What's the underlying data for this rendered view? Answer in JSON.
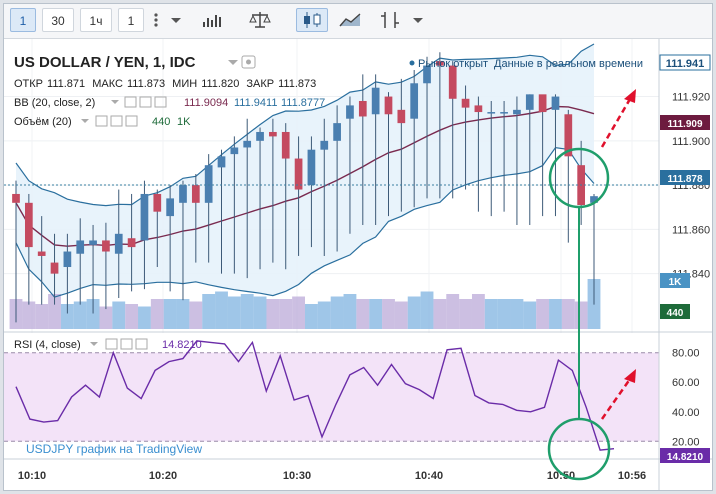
{
  "toolbar": {
    "buttons": [
      "1",
      "30",
      "1ч",
      "1"
    ],
    "active_index": 0
  },
  "header": {
    "title": "US DOLLAR / YEN, 1, IDC",
    "market_status": "Рынок открыт",
    "realtime": "Данные в реальном времени",
    "ohlc": {
      "open_label": "ОТКР",
      "open": "111.871",
      "high_label": "МАКС",
      "high": "111.873",
      "low_label": "МИН",
      "low": "111.820",
      "close_label": "ЗАКР",
      "close": "111.873"
    },
    "bb_label": "BB (20, close, 2)",
    "bb_values": [
      "111.9094",
      "111.9411",
      "111.8777"
    ],
    "volume_label": "Объём (20)",
    "volume_values": [
      "440",
      "1K"
    ]
  },
  "rsi_panel": {
    "label": "RSI (4, close)",
    "value": "14.8210"
  },
  "watermark": "USDJPY график на TradingView",
  "price_tags": {
    "top": "111.941",
    "mid": "111.909",
    "last": "111.878",
    "vol_1k": "1K",
    "vol_440": "440",
    "rsi": "14.8210"
  },
  "colors": {
    "up": "#4a7fb0",
    "down": "#c44a60",
    "bb_band": "#2a6f9e",
    "bb_mid": "#7a2a4f",
    "bb_fill": "#e6f2fb",
    "vol_up": "#7fb3e0",
    "vol_down": "#bba9d8",
    "rsi_line": "#6a2ca8",
    "rsi_fill": "#f3e3f8",
    "annotation": "#1f9e6b",
    "arrow": "#e0102c"
  },
  "chart_data": [
    {
      "type": "candlestick",
      "title": "US DOLLAR / YEN, 1, IDC",
      "x_ticks": [
        "10:10",
        "10:20",
        "10:30",
        "10:40",
        "10:50",
        "10:56"
      ],
      "y_ticks": [
        111.84,
        111.86,
        111.88,
        111.9,
        111.92
      ],
      "ylim": [
        111.815,
        111.946
      ],
      "candles": [
        {
          "o": 111.876,
          "h": 111.882,
          "l": 111.818,
          "c": 111.872
        },
        {
          "o": 111.872,
          "h": 111.876,
          "l": 111.826,
          "c": 111.852
        },
        {
          "o": 111.85,
          "h": 111.866,
          "l": 111.826,
          "c": 111.848
        },
        {
          "o": 111.845,
          "h": 111.858,
          "l": 111.826,
          "c": 111.84
        },
        {
          "o": 111.843,
          "h": 111.858,
          "l": 111.822,
          "c": 111.85
        },
        {
          "o": 111.849,
          "h": 111.865,
          "l": 111.826,
          "c": 111.855
        },
        {
          "o": 111.853,
          "h": 111.862,
          "l": 111.822,
          "c": 111.855
        },
        {
          "o": 111.855,
          "h": 111.863,
          "l": 111.824,
          "c": 111.85
        },
        {
          "o": 111.849,
          "h": 111.878,
          "l": 111.829,
          "c": 111.858
        },
        {
          "o": 111.856,
          "h": 111.876,
          "l": 111.832,
          "c": 111.852
        },
        {
          "o": 111.855,
          "h": 111.882,
          "l": 111.833,
          "c": 111.876
        },
        {
          "o": 111.876,
          "h": 111.878,
          "l": 111.843,
          "c": 111.868
        },
        {
          "o": 111.866,
          "h": 111.88,
          "l": 111.832,
          "c": 111.874
        },
        {
          "o": 111.872,
          "h": 111.882,
          "l": 111.828,
          "c": 111.88
        },
        {
          "o": 111.88,
          "h": 111.885,
          "l": 111.845,
          "c": 111.872
        },
        {
          "o": 111.872,
          "h": 111.894,
          "l": 111.845,
          "c": 111.889
        },
        {
          "o": 111.888,
          "h": 111.896,
          "l": 111.84,
          "c": 111.893
        },
        {
          "o": 111.894,
          "h": 111.902,
          "l": 111.84,
          "c": 111.897
        },
        {
          "o": 111.897,
          "h": 111.91,
          "l": 111.838,
          "c": 111.9
        },
        {
          "o": 111.9,
          "h": 111.906,
          "l": 111.842,
          "c": 111.904
        },
        {
          "o": 111.904,
          "h": 111.91,
          "l": 111.845,
          "c": 111.902
        },
        {
          "o": 111.904,
          "h": 111.908,
          "l": 111.842,
          "c": 111.892
        },
        {
          "o": 111.892,
          "h": 111.902,
          "l": 111.848,
          "c": 111.878
        },
        {
          "o": 111.88,
          "h": 111.902,
          "l": 111.852,
          "c": 111.896
        },
        {
          "o": 111.896,
          "h": 111.91,
          "l": 111.848,
          "c": 111.9
        },
        {
          "o": 111.9,
          "h": 111.916,
          "l": 111.85,
          "c": 111.908
        },
        {
          "o": 111.91,
          "h": 111.92,
          "l": 111.858,
          "c": 111.916
        },
        {
          "o": 111.918,
          "h": 111.93,
          "l": 111.862,
          "c": 111.911
        },
        {
          "o": 111.912,
          "h": 111.93,
          "l": 111.862,
          "c": 111.924
        },
        {
          "o": 111.92,
          "h": 111.922,
          "l": 111.866,
          "c": 111.912
        },
        {
          "o": 111.914,
          "h": 111.928,
          "l": 111.868,
          "c": 111.908
        },
        {
          "o": 111.91,
          "h": 111.932,
          "l": 111.87,
          "c": 111.926
        },
        {
          "o": 111.926,
          "h": 111.938,
          "l": 111.874,
          "c": 111.934
        },
        {
          "o": 111.936,
          "h": 111.94,
          "l": 111.874,
          "c": 111.934
        },
        {
          "o": 111.934,
          "h": 111.936,
          "l": 111.874,
          "c": 111.919
        },
        {
          "o": 111.919,
          "h": 111.925,
          "l": 111.878,
          "c": 111.915
        },
        {
          "o": 111.916,
          "h": 111.92,
          "l": 111.868,
          "c": 111.913
        },
        {
          "o": 111.913,
          "h": 111.918,
          "l": 111.866,
          "c": 111.913
        },
        {
          "o": 111.913,
          "h": 111.918,
          "l": 111.868,
          "c": 111.913
        },
        {
          "o": 111.912,
          "h": 111.92,
          "l": 111.862,
          "c": 111.914
        },
        {
          "o": 111.914,
          "h": 111.921,
          "l": 111.862,
          "c": 111.921
        },
        {
          "o": 111.921,
          "h": 111.92,
          "l": 111.866,
          "c": 111.913
        },
        {
          "o": 111.914,
          "h": 111.921,
          "l": 111.866,
          "c": 111.92
        },
        {
          "o": 111.912,
          "h": 111.914,
          "l": 111.854,
          "c": 111.893
        },
        {
          "o": 111.889,
          "h": 111.9,
          "l": 111.862,
          "c": 111.871
        },
        {
          "o": 111.872,
          "h": 111.876,
          "l": 111.826,
          "c": 111.875
        }
      ]
    },
    {
      "type": "line",
      "title": "RSI (4, close)",
      "x_ticks": [
        "10:10",
        "10:20",
        "10:30",
        "10:40",
        "10:50",
        "10:56"
      ],
      "y_ticks": [
        20,
        40,
        60,
        80
      ],
      "ylim": [
        8,
        92
      ],
      "series": [
        {
          "name": "RSI (4, close)",
          "values": [
            57,
            35,
            33,
            34,
            50,
            58,
            50,
            80,
            56,
            49,
            68,
            74,
            76,
            88,
            87,
            86,
            74,
            87,
            54,
            78,
            48,
            51,
            23,
            45,
            65,
            70,
            58,
            72,
            59,
            55,
            49,
            82,
            83,
            51,
            46,
            45,
            41,
            40,
            43,
            75,
            68,
            43,
            14,
            15
          ]
        }
      ]
    }
  ]
}
